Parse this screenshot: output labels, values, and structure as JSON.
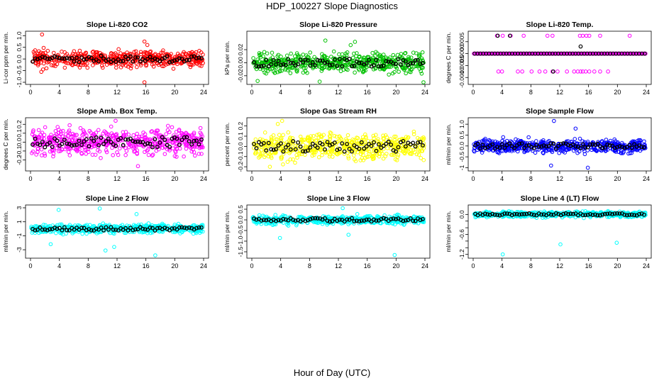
{
  "figure": {
    "title": "HDP_100227  Slope Diagnostics",
    "xlabel": "Hour of Day (UTC)"
  },
  "chart_data": [
    {
      "type": "scatter",
      "title": "Slope Li-820 CO2",
      "ylabel": "Li-cor ppm per min.",
      "color": "#ff0000",
      "xlim": [
        0,
        24
      ],
      "ylim": [
        -1.0,
        1.1
      ],
      "xticks": [
        0,
        4,
        8,
        12,
        16,
        20,
        24
      ],
      "yticks": [
        -1.0,
        -0.5,
        0.0,
        0.5,
        1.0
      ],
      "ytick_labels": [
        "-1.0",
        "-0.5",
        "0.0",
        "0.5",
        "1.0"
      ],
      "pattern": "dense",
      "spread": 0.5,
      "outliers": [
        [
          1.6,
          1.05
        ],
        [
          1.5,
          -0.55
        ],
        [
          15.8,
          0.75
        ],
        [
          15.8,
          -1.0
        ],
        [
          16.2,
          0.6
        ]
      ],
      "seed": 11
    },
    {
      "type": "scatter",
      "title": "Slope Li-820 Pressure",
      "ylabel": "kPa per min.",
      "color": "#00c000",
      "xlim": [
        0,
        24
      ],
      "ylim": [
        -0.03,
        0.045
      ],
      "xticks": [
        0,
        4,
        8,
        12,
        16,
        20,
        24
      ],
      "yticks": [
        -0.02,
        0.0,
        0.02
      ],
      "ytick_labels": [
        "-0.02",
        "0.00",
        "0.02"
      ],
      "pattern": "dense",
      "spread": 0.022,
      "outliers": [
        [
          10.2,
          0.034
        ],
        [
          13.7,
          0.027
        ],
        [
          14.3,
          0.032
        ],
        [
          0.8,
          -0.028
        ],
        [
          23.8,
          -0.03
        ],
        [
          9.4,
          -0.029
        ]
      ],
      "seed": 23
    },
    {
      "type": "scatter",
      "title": "Slope Li-820 Temp.",
      "ylabel": "degrees C per min.",
      "color": "#ff00ff",
      "xlim": [
        0,
        24
      ],
      "ylim": [
        -0.0012,
        0.00085
      ],
      "xticks": [
        0,
        4,
        8,
        12,
        16,
        20,
        24
      ],
      "yticks": [
        -0.001,
        -0.0005,
        0.0,
        0.0005
      ],
      "ytick_labels": [
        "-0.0010",
        "-0.0005",
        "0.0000",
        "0.0005"
      ],
      "pattern": "quantized",
      "line_value": 0.0,
      "upper_value": 0.00075,
      "lower_value": -0.00075,
      "upper_hours": [
        3.3,
        4.1,
        5.2,
        7.0,
        10.3,
        11.0,
        14.8,
        15.2,
        15.7,
        16.1,
        17.6,
        21.7
      ],
      "lower_hours": [
        3.5,
        4.0,
        6.2,
        6.8,
        8.1,
        9.2,
        10.0,
        11.0,
        11.7,
        13.0,
        14.0,
        14.5,
        14.9,
        15.2,
        15.6,
        16.1,
        16.8,
        17.6,
        18.7
      ],
      "black_extra": [
        [
          3.4,
          0.00075
        ],
        [
          5.1,
          0.00075
        ],
        [
          14.9,
          0.0003
        ],
        [
          11.1,
          -0.00075
        ]
      ],
      "seed": 37
    },
    {
      "type": "scatter",
      "title": "Slope Amb. Box Temp.",
      "ylabel": "degrees C per min.",
      "color": "#ff00ff",
      "xlim": [
        0,
        24
      ],
      "ylim": [
        -0.3,
        0.25
      ],
      "xticks": [
        0,
        4,
        8,
        12,
        16,
        20,
        24
      ],
      "yticks": [
        -0.2,
        -0.1,
        0.0,
        0.1,
        0.2
      ],
      "ytick_labels": [
        "-0.2",
        "-0.1",
        "0.0",
        "0.1",
        "0.2"
      ],
      "pattern": "dense",
      "spread": 0.21,
      "outliers": [
        [
          14.9,
          -0.27
        ],
        [
          11.8,
          0.24
        ]
      ],
      "seed": 41
    },
    {
      "type": "scatter",
      "title": "Slope Gas Stream RH",
      "ylabel": "percent per min.",
      "color": "#ffff00",
      "xlim": [
        0,
        24
      ],
      "ylim": [
        -0.22,
        0.26
      ],
      "xticks": [
        0,
        4,
        8,
        12,
        16,
        20,
        24
      ],
      "yticks": [
        -0.2,
        -0.1,
        0.0,
        0.1,
        0.2
      ],
      "ytick_labels": [
        "-0.2",
        "-0.1",
        "0.0",
        "0.1",
        "0.2"
      ],
      "pattern": "dense",
      "spread": 0.19,
      "outliers": [
        [
          4.2,
          0.25
        ],
        [
          3.6,
          0.22
        ],
        [
          2.5,
          -0.2
        ]
      ],
      "seed": 53
    },
    {
      "type": "scatter",
      "title": "Slope Sample Flow",
      "ylabel": "ml/min per min.",
      "color": "#0000ff",
      "xlim": [
        0,
        24
      ],
      "ylim": [
        -1.05,
        1.2
      ],
      "xticks": [
        0,
        4,
        8,
        12,
        16,
        20,
        24
      ],
      "yticks": [
        -1.0,
        -0.5,
        0.0,
        0.5,
        1.0
      ],
      "ytick_labels": [
        "-1",
        "-0.5",
        "0.0",
        "0.5",
        "1.0"
      ],
      "pattern": "dense",
      "spread": 0.45,
      "outliers": [
        [
          11.2,
          1.15
        ],
        [
          15.9,
          -1.0
        ],
        [
          10.8,
          -0.9
        ],
        [
          14.2,
          0.8
        ]
      ],
      "seed": 67
    },
    {
      "type": "scatter",
      "title": "Slope Line 2 Flow",
      "ylabel": "ml/min per min.",
      "color": "#00ffff",
      "xlim": [
        0,
        24
      ],
      "ylim": [
        -3.9,
        3.1
      ],
      "xticks": [
        0,
        4,
        8,
        12,
        16,
        20,
        24
      ],
      "yticks": [
        -3,
        -1,
        1,
        3
      ],
      "ytick_labels": [
        "-3",
        "-1",
        "1",
        "3"
      ],
      "pattern": "dense",
      "spread": 0.9,
      "outliers": [
        [
          3.9,
          2.7
        ],
        [
          9.6,
          2.9
        ],
        [
          11.6,
          -2.6
        ],
        [
          10.4,
          -3.1
        ],
        [
          17.3,
          -3.8
        ],
        [
          2.8,
          -2.2
        ],
        [
          14.7,
          2.1
        ]
      ],
      "seed": 71
    },
    {
      "type": "scatter",
      "title": "Slope Line 3 Flow",
      "ylabel": "ml/min per min.",
      "color": "#00ffff",
      "xlim": [
        0,
        24
      ],
      "ylim": [
        -1.7,
        0.6
      ],
      "xticks": [
        0,
        4,
        8,
        12,
        16,
        20,
        24
      ],
      "yticks": [
        -1.5,
        -1.0,
        -0.5,
        0.0,
        0.5
      ],
      "ytick_labels": [
        "-1.5",
        "-1.0",
        "-0.5",
        "0.0",
        "0.5"
      ],
      "pattern": "dense",
      "spread": 0.3,
      "outliers": [
        [
          12.6,
          0.55
        ],
        [
          3.9,
          -0.85
        ],
        [
          13.4,
          -0.7
        ],
        [
          19.8,
          -1.65
        ]
      ],
      "seed": 83
    },
    {
      "type": "scatter",
      "title": "Slope Line 4 (LT) Flow",
      "ylabel": "ml/min per min.",
      "color": "#00ffff",
      "xlim": [
        0,
        24
      ],
      "ylim": [
        -1.25,
        0.22
      ],
      "xticks": [
        0,
        4,
        8,
        12,
        16,
        20,
        24
      ],
      "yticks": [
        -1.2,
        -1.0,
        -0.8,
        -0.6,
        -0.4,
        -0.2,
        0.0
      ],
      "ytick_labels": [
        "-1.2",
        "",
        "",
        "-0.6",
        "",
        "",
        "0.0"
      ],
      "pattern": "dense",
      "spread": 0.12,
      "outliers": [
        [
          4.1,
          -1.2
        ],
        [
          12.1,
          -0.9
        ],
        [
          19.9,
          -0.85
        ]
      ],
      "seed": 97
    }
  ]
}
